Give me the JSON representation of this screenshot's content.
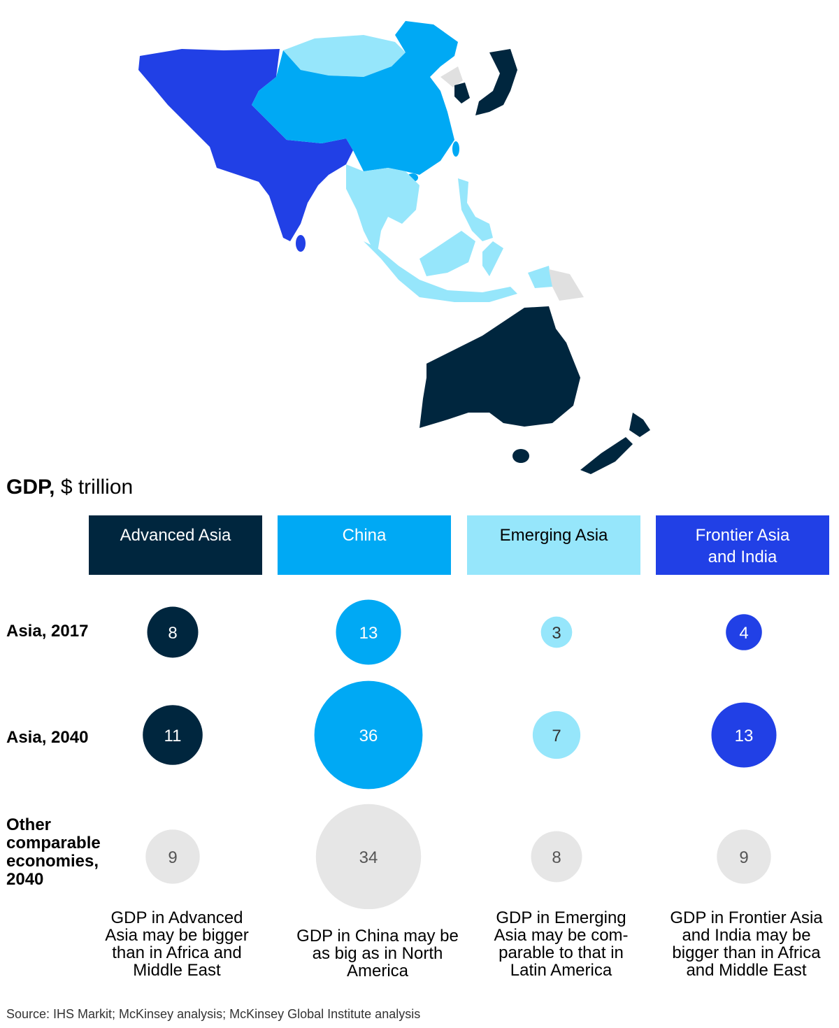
{
  "title_bold": "GDP,",
  "title_unit": "$ trillion",
  "colors": {
    "advanced": "#00263e",
    "china": "#00a9f4",
    "emerging": "#96e6fb",
    "frontier": "#2140e6",
    "other": "#e6e6e6"
  },
  "categories": [
    {
      "label": "Advanced Asia",
      "color": "#00263e",
      "text_color": "#ffffff"
    },
    {
      "label": "China",
      "color": "#00a9f4",
      "text_color": "#ffffff"
    },
    {
      "label": "Emerging Asia",
      "color": "#96e6fb",
      "text_color": "#000000"
    },
    {
      "label": "Frontier Asia and India",
      "color": "#2140e6",
      "text_color": "#ffffff"
    }
  ],
  "chart_data": {
    "type": "bubble",
    "categories": [
      "Advanced Asia",
      "China",
      "Emerging Asia",
      "Frontier Asia and India"
    ],
    "series": [
      {
        "name": "Asia, 2017",
        "values": [
          8,
          13,
          3,
          4
        ]
      },
      {
        "name": "Asia, 2040",
        "values": [
          11,
          36,
          7,
          13
        ]
      },
      {
        "name": "Other comparable economies, 2040",
        "values": [
          9,
          34,
          8,
          9
        ]
      }
    ]
  },
  "row_labels": [
    "Asia, 2017",
    "Asia, 2040",
    "Other comparable economies, 2040"
  ],
  "notes": [
    "GDP in Advanced Asia may be bigger than in Africa and Middle East",
    "GDP in China may be as big as in North America",
    "GDP in Emerging Asia may be com-parable to that in Latin America",
    "GDP in Frontier Asia and India may be bigger than in Africa and Middle East"
  ],
  "source": "Source: IHS Markit; McKinsey analysis; McKinsey Global Institute analysis"
}
